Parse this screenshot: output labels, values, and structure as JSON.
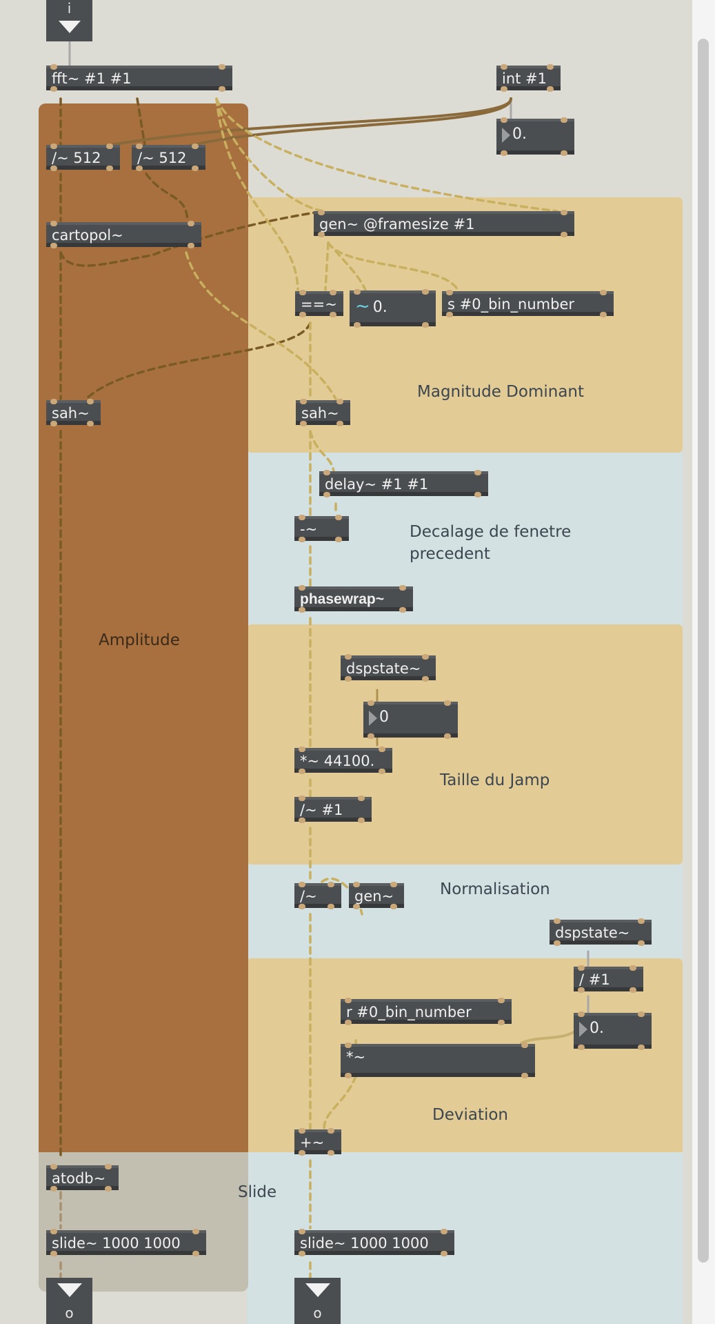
{
  "patch": {
    "inlet": {
      "label": "i"
    },
    "outlets": [
      {
        "label": "o"
      },
      {
        "label": "o"
      }
    ],
    "objects": {
      "fft": "fft~ #1 #1",
      "int": "int #1",
      "div512a": "/~ 512",
      "div512b": "/~ 512",
      "cartopol": "cartopol~",
      "gen_framesize": "gen~ @framesize #1",
      "eqeq": "==~",
      "s_bin": "s #0_bin_number",
      "sah_left": "sah~",
      "sah_mid": "sah~",
      "delay": "delay~ #1 #1",
      "minus": "-~",
      "phasewrap": "phasewrap~",
      "dspstate_1": "dspstate~",
      "mul44100": "*~ 44100.",
      "div_n": "/~ #1",
      "div": "/~",
      "gen": "gen~",
      "dspstate_2": "dspstate~",
      "div_hash1": "/ #1",
      "r_bin": "r #0_bin_number",
      "mul": "*~",
      "plus": "+~",
      "atodb": "atodb~",
      "slide_left": "slide~ 1000 1000",
      "slide_right": "slide~ 1000 1000"
    },
    "number_boxes": {
      "int_out": "0.",
      "signal_num": "0.",
      "dsp_num": "0",
      "dev_num": "0."
    },
    "comments": {
      "magnitude": "Magnitude Dominant",
      "decalage": "Decalage de fenetre\nprecedent",
      "amplitude": "Amplitude",
      "taille": "Taille du Jamp",
      "normalisation": "Normalisation",
      "deviation": "Deviation",
      "slide": "Slide"
    },
    "colors": {
      "background": "#dcdcd5",
      "amplitude_panel": "#a8703f",
      "yellow_panel": "#e2cb94",
      "blue_panel": "#d3e1e2",
      "slide_panel": "#c2bfb0",
      "object_box": "#4b4e50",
      "signal_cord": "#d8d08a",
      "amp_cord": "#7a5a24",
      "control_cord": "#a8a8a8"
    },
    "icons": {
      "signal_wave": "tilde-wave-icon",
      "inlet_arrow": "down-triangle-icon",
      "number_triangle": "right-triangle-icon"
    }
  }
}
